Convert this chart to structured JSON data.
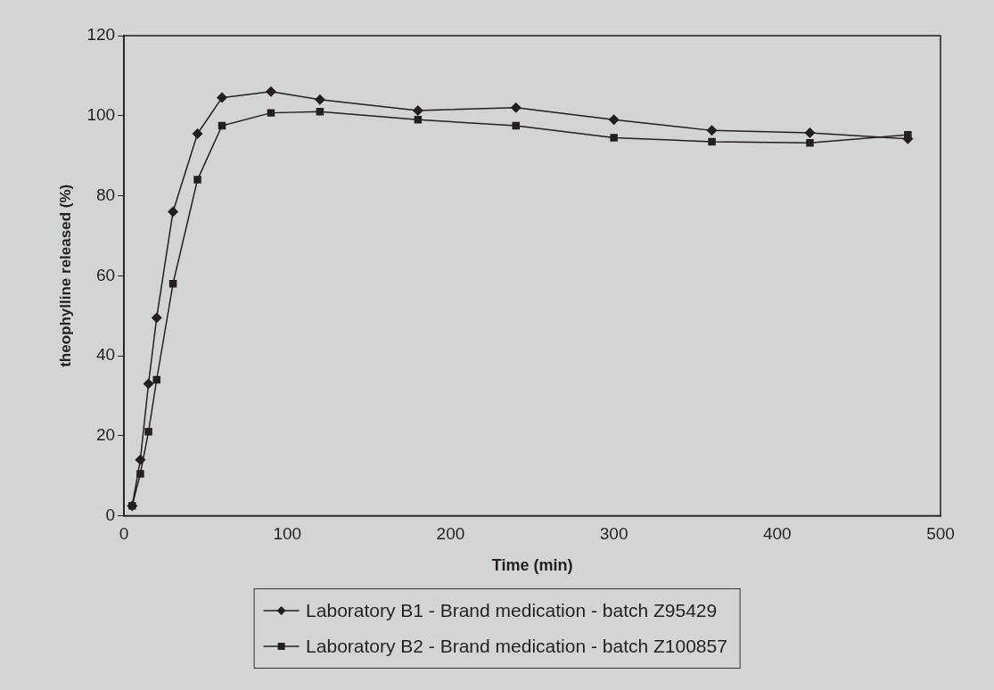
{
  "chart_data": {
    "type": "line",
    "xlabel": "Time (min)",
    "ylabel": "theophylline released (%)",
    "x": [
      5,
      10,
      15,
      20,
      30,
      45,
      60,
      90,
      120,
      180,
      240,
      300,
      360,
      420,
      480
    ],
    "series": [
      {
        "name": "Laboratory B1 - Brand medication - batch Z95429",
        "color": "#231f20",
        "marker": "diamond",
        "values": [
          2.5,
          14,
          33,
          49.5,
          76,
          95.5,
          104.5,
          106,
          104,
          101.3,
          102,
          99,
          96.3,
          95.7,
          94.2
        ]
      },
      {
        "name": "Laboratory B2 - Brand medication - batch Z100857",
        "color": "#231f20",
        "marker": "square",
        "values": [
          2.5,
          10.5,
          21,
          34,
          58,
          84,
          97.5,
          100.7,
          101,
          99,
          97.5,
          94.5,
          93.5,
          93.2,
          95.2
        ]
      }
    ],
    "xlim": [
      0,
      500
    ],
    "xticks": [
      0,
      100,
      200,
      300,
      400,
      500
    ],
    "ylim": [
      0,
      120
    ],
    "yticks": [
      0,
      20,
      40,
      60,
      80,
      100,
      120
    ],
    "grid": false,
    "legend": "bottom",
    "line_style": "solid"
  }
}
